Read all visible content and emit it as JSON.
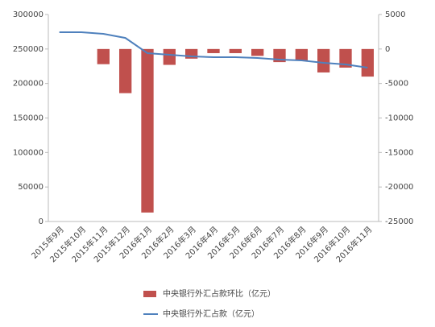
{
  "chart_data": {
    "type": "bar",
    "categories": [
      "2015年9月",
      "2015年10月",
      "2015年11月",
      "2015年12月",
      "2016年1月",
      "2016年2月",
      "2016年3月",
      "2016年4月",
      "2016年5月",
      "2016年6月",
      "2016年7月",
      "2016年8月",
      "2016年9月",
      "2016年10月",
      "2016年11月"
    ],
    "series": [
      {
        "name": "中央银行外汇占款环比（亿元）",
        "type": "bar",
        "axis": "y2",
        "color": "#c0504d",
        "values": [
          0,
          0,
          -2200,
          -6400,
          -23700,
          -2300,
          -1400,
          -600,
          -600,
          -1000,
          -1900,
          -1700,
          -3400,
          -2700,
          -4000
        ]
      },
      {
        "name": "中央银行外汇占款（亿元）",
        "type": "line",
        "axis": "y",
        "color": "#4f81bd",
        "values": [
          274300,
          274300,
          272000,
          266000,
          244000,
          241600,
          239300,
          238100,
          238100,
          237000,
          234600,
          233500,
          230000,
          227600,
          223000
        ]
      }
    ],
    "ylim": [
      0,
      300000
    ],
    "yticks": [
      0,
      50000,
      100000,
      150000,
      200000,
      250000,
      300000
    ],
    "y2lim": [
      -25000,
      5000
    ],
    "y2ticks": [
      -25000,
      -20000,
      -15000,
      -10000,
      -5000,
      0,
      5000
    ],
    "grid": false
  }
}
